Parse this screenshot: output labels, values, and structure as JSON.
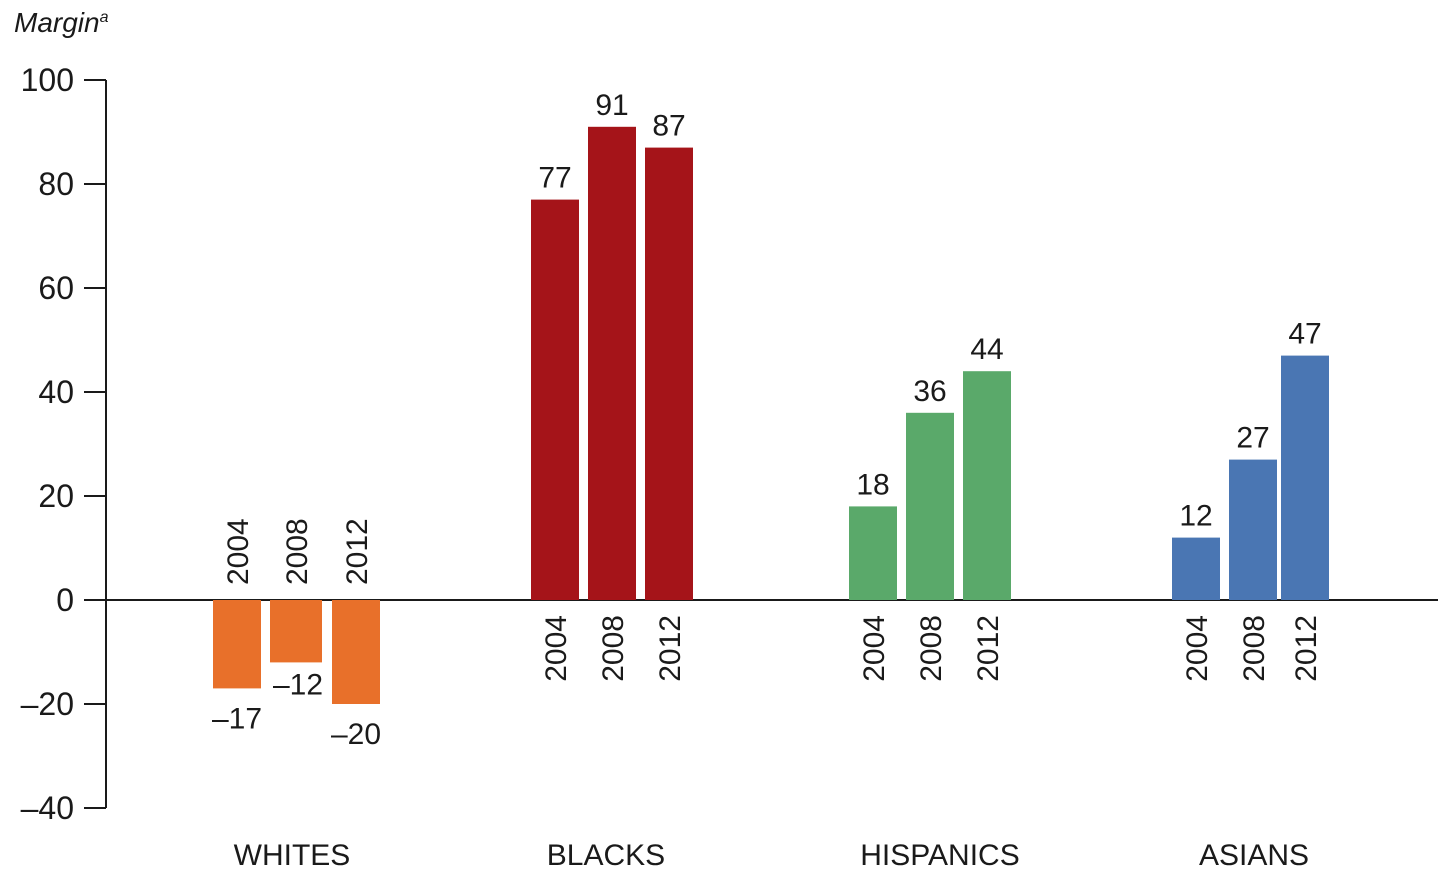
{
  "chart_data": {
    "type": "bar",
    "ylabel": "Margin",
    "ylabel_superscript": "a",
    "ylim": [
      -40,
      100
    ],
    "yticks": [
      100,
      80,
      60,
      40,
      20,
      0,
      -20,
      -40
    ],
    "ytick_labels": [
      "100",
      "80",
      "60",
      "40",
      "20",
      "0",
      "–20",
      "–40"
    ],
    "groups": [
      {
        "name": "WHITES",
        "color": "#e8702a",
        "years": [
          "2004",
          "2008",
          "2012"
        ],
        "values": [
          -17,
          -12,
          -20
        ],
        "value_labels": [
          "–17",
          "–12",
          "–20"
        ]
      },
      {
        "name": "BLACKS",
        "color": "#a51419",
        "years": [
          "2004",
          "2008",
          "2012"
        ],
        "values": [
          77,
          91,
          87
        ],
        "value_labels": [
          "77",
          "91",
          "87"
        ]
      },
      {
        "name": "HISPANICS",
        "color": "#5aa96a",
        "years": [
          "2004",
          "2008",
          "2012"
        ],
        "values": [
          18,
          36,
          44
        ],
        "value_labels": [
          "18",
          "36",
          "44"
        ]
      },
      {
        "name": "ASIANS",
        "color": "#4a76b3",
        "years": [
          "2004",
          "2008",
          "2012"
        ],
        "values": [
          12,
          27,
          47
        ],
        "value_labels": [
          "12",
          "27",
          "47"
        ]
      }
    ],
    "grid": false
  }
}
